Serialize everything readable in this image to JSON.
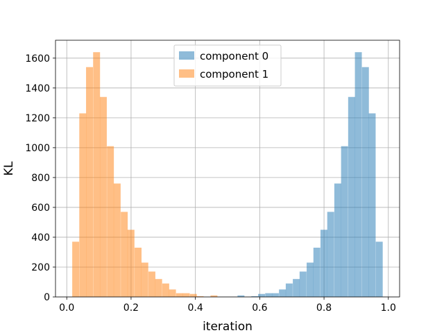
{
  "chart_data": {
    "type": "histogram",
    "title": "",
    "xlabel": "iteration",
    "ylabel": "KL",
    "xlim": [
      -0.035,
      1.035
    ],
    "ylim": [
      0,
      1720
    ],
    "xticks": [
      0.0,
      0.2,
      0.4,
      0.6,
      0.8,
      1.0
    ],
    "xtick_labels": [
      "0.0",
      "0.2",
      "0.4",
      "0.6",
      "0.8",
      "1.0"
    ],
    "yticks": [
      0,
      200,
      400,
      600,
      800,
      1000,
      1200,
      1400,
      1600
    ],
    "ytick_labels": [
      "0",
      "200",
      "400",
      "600",
      "800",
      "1000",
      "1200",
      "1400",
      "1600"
    ],
    "grid": true,
    "legend_position": "upper-center",
    "series": [
      {
        "name": "component 0",
        "color": "#1f77b4",
        "alpha": 0.5,
        "bin_width": 0.0215,
        "bins": [
          {
            "x0": 0.531,
            "count": 10
          },
          {
            "x0": 0.574,
            "count": 5
          },
          {
            "x0": 0.595,
            "count": 20
          },
          {
            "x0": 0.617,
            "count": 25
          },
          {
            "x0": 0.638,
            "count": 25
          },
          {
            "x0": 0.66,
            "count": 50
          },
          {
            "x0": 0.681,
            "count": 90
          },
          {
            "x0": 0.703,
            "count": 120
          },
          {
            "x0": 0.724,
            "count": 170
          },
          {
            "x0": 0.746,
            "count": 230
          },
          {
            "x0": 0.767,
            "count": 330
          },
          {
            "x0": 0.789,
            "count": 450
          },
          {
            "x0": 0.81,
            "count": 570
          },
          {
            "x0": 0.832,
            "count": 760
          },
          {
            "x0": 0.853,
            "count": 1010
          },
          {
            "x0": 0.875,
            "count": 1340
          },
          {
            "x0": 0.896,
            "count": 1640
          },
          {
            "x0": 0.918,
            "count": 1540
          },
          {
            "x0": 0.939,
            "count": 1230
          },
          {
            "x0": 0.961,
            "count": 370
          }
        ]
      },
      {
        "name": "component 1",
        "color": "#ff7f0e",
        "alpha": 0.5,
        "bin_width": 0.0215,
        "bins": [
          {
            "x0": 0.017,
            "count": 370
          },
          {
            "x0": 0.039,
            "count": 1230
          },
          {
            "x0": 0.06,
            "count": 1540
          },
          {
            "x0": 0.082,
            "count": 1640
          },
          {
            "x0": 0.103,
            "count": 1340
          },
          {
            "x0": 0.125,
            "count": 1010
          },
          {
            "x0": 0.146,
            "count": 760
          },
          {
            "x0": 0.168,
            "count": 570
          },
          {
            "x0": 0.189,
            "count": 450
          },
          {
            "x0": 0.211,
            "count": 330
          },
          {
            "x0": 0.232,
            "count": 230
          },
          {
            "x0": 0.254,
            "count": 170
          },
          {
            "x0": 0.275,
            "count": 120
          },
          {
            "x0": 0.297,
            "count": 90
          },
          {
            "x0": 0.318,
            "count": 50
          },
          {
            "x0": 0.34,
            "count": 25
          },
          {
            "x0": 0.361,
            "count": 25
          },
          {
            "x0": 0.383,
            "count": 20
          },
          {
            "x0": 0.404,
            "count": 5
          },
          {
            "x0": 0.447,
            "count": 10
          }
        ]
      }
    ]
  }
}
